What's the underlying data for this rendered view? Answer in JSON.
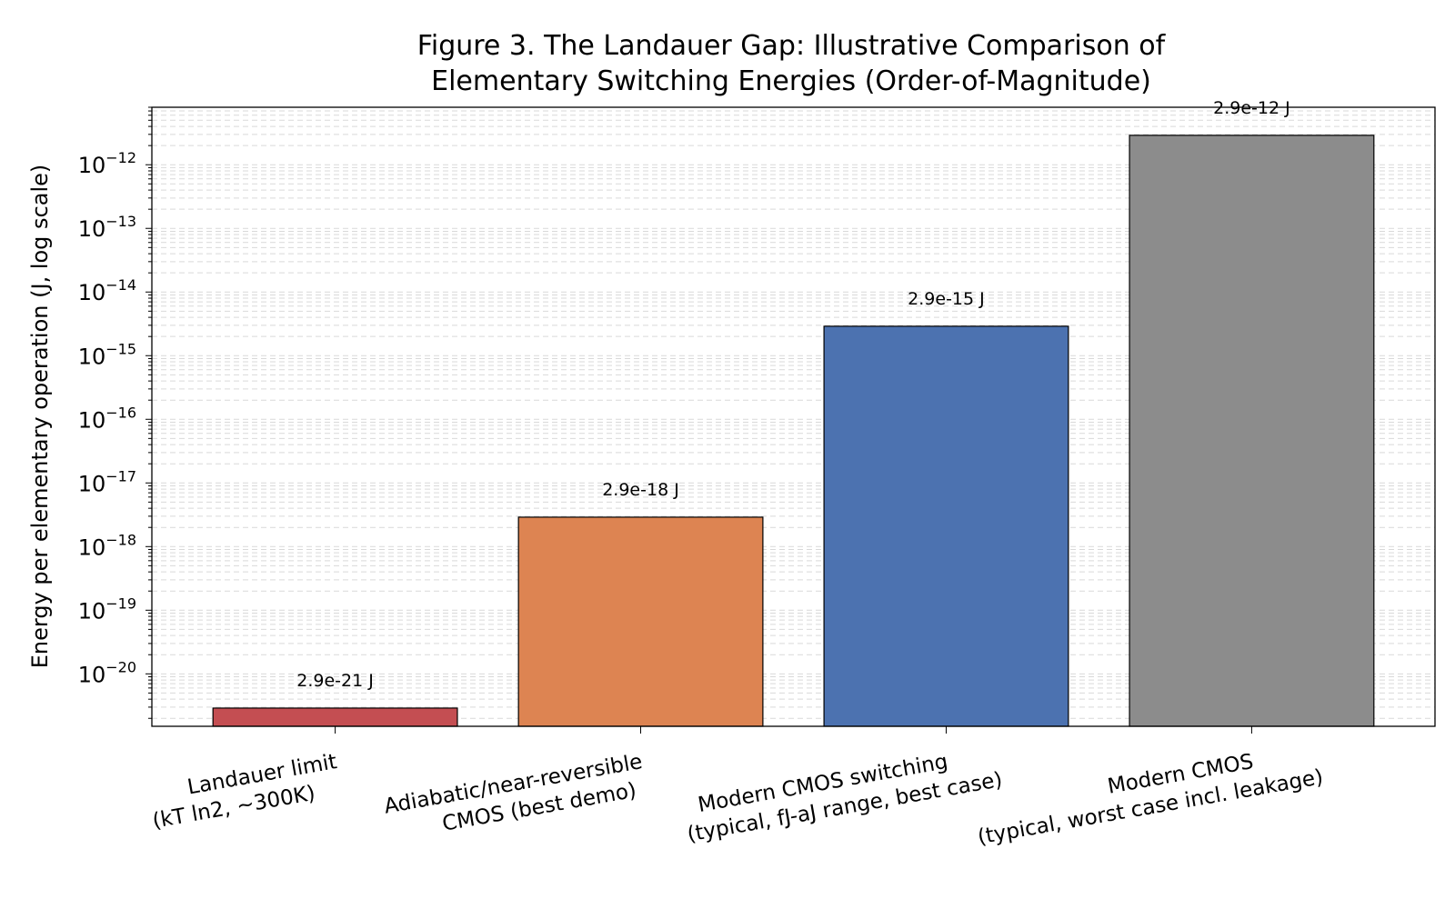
{
  "chart_data": {
    "type": "bar",
    "title_lines": [
      "Figure 3. The Landauer Gap: Illustrative Comparison of",
      "Elementary Switching Energies (Order-of-Magnitude)"
    ],
    "ylabel": "Energy per elementary operation (J, log scale)",
    "xlabel": "",
    "yscale": "log",
    "ylim": [
      1.5e-21,
      8e-12
    ],
    "y_ticks": [
      {
        "value": 1e-20,
        "base": "10",
        "exp": "−20"
      },
      {
        "value": 1e-19,
        "base": "10",
        "exp": "−19"
      },
      {
        "value": 1e-18,
        "base": "10",
        "exp": "−18"
      },
      {
        "value": 1e-17,
        "base": "10",
        "exp": "−17"
      },
      {
        "value": 1e-16,
        "base": "10",
        "exp": "−16"
      },
      {
        "value": 1e-15,
        "base": "10",
        "exp": "−15"
      },
      {
        "value": 1e-14,
        "base": "10",
        "exp": "−14"
      },
      {
        "value": 1e-13,
        "base": "10",
        "exp": "−13"
      },
      {
        "value": 1e-12,
        "base": "10",
        "exp": "−12"
      }
    ],
    "grid": "horizontal dashed (major and minor)",
    "bars": [
      {
        "category_lines": [
          "Landauer limit",
          "(kT ln2, ~300K)"
        ],
        "value": 2.9e-21,
        "label": "2.9e-21 J",
        "color": "#c44e52"
      },
      {
        "category_lines": [
          "Adiabatic/near-reversible",
          "CMOS (best demo)"
        ],
        "value": 2.9e-18,
        "label": "2.9e-18 J",
        "color": "#dd8452"
      },
      {
        "category_lines": [
          "Modern CMOS switching",
          "(typical, fJ-aJ range, best case)"
        ],
        "value": 2.9e-15,
        "label": "2.9e-15 J",
        "color": "#4c72b0"
      },
      {
        "category_lines": [
          "Modern CMOS",
          "(typical, worst case incl. leakage)"
        ],
        "value": 2.9e-12,
        "label": "2.9e-12 J",
        "color": "#8c8c8c"
      }
    ]
  }
}
